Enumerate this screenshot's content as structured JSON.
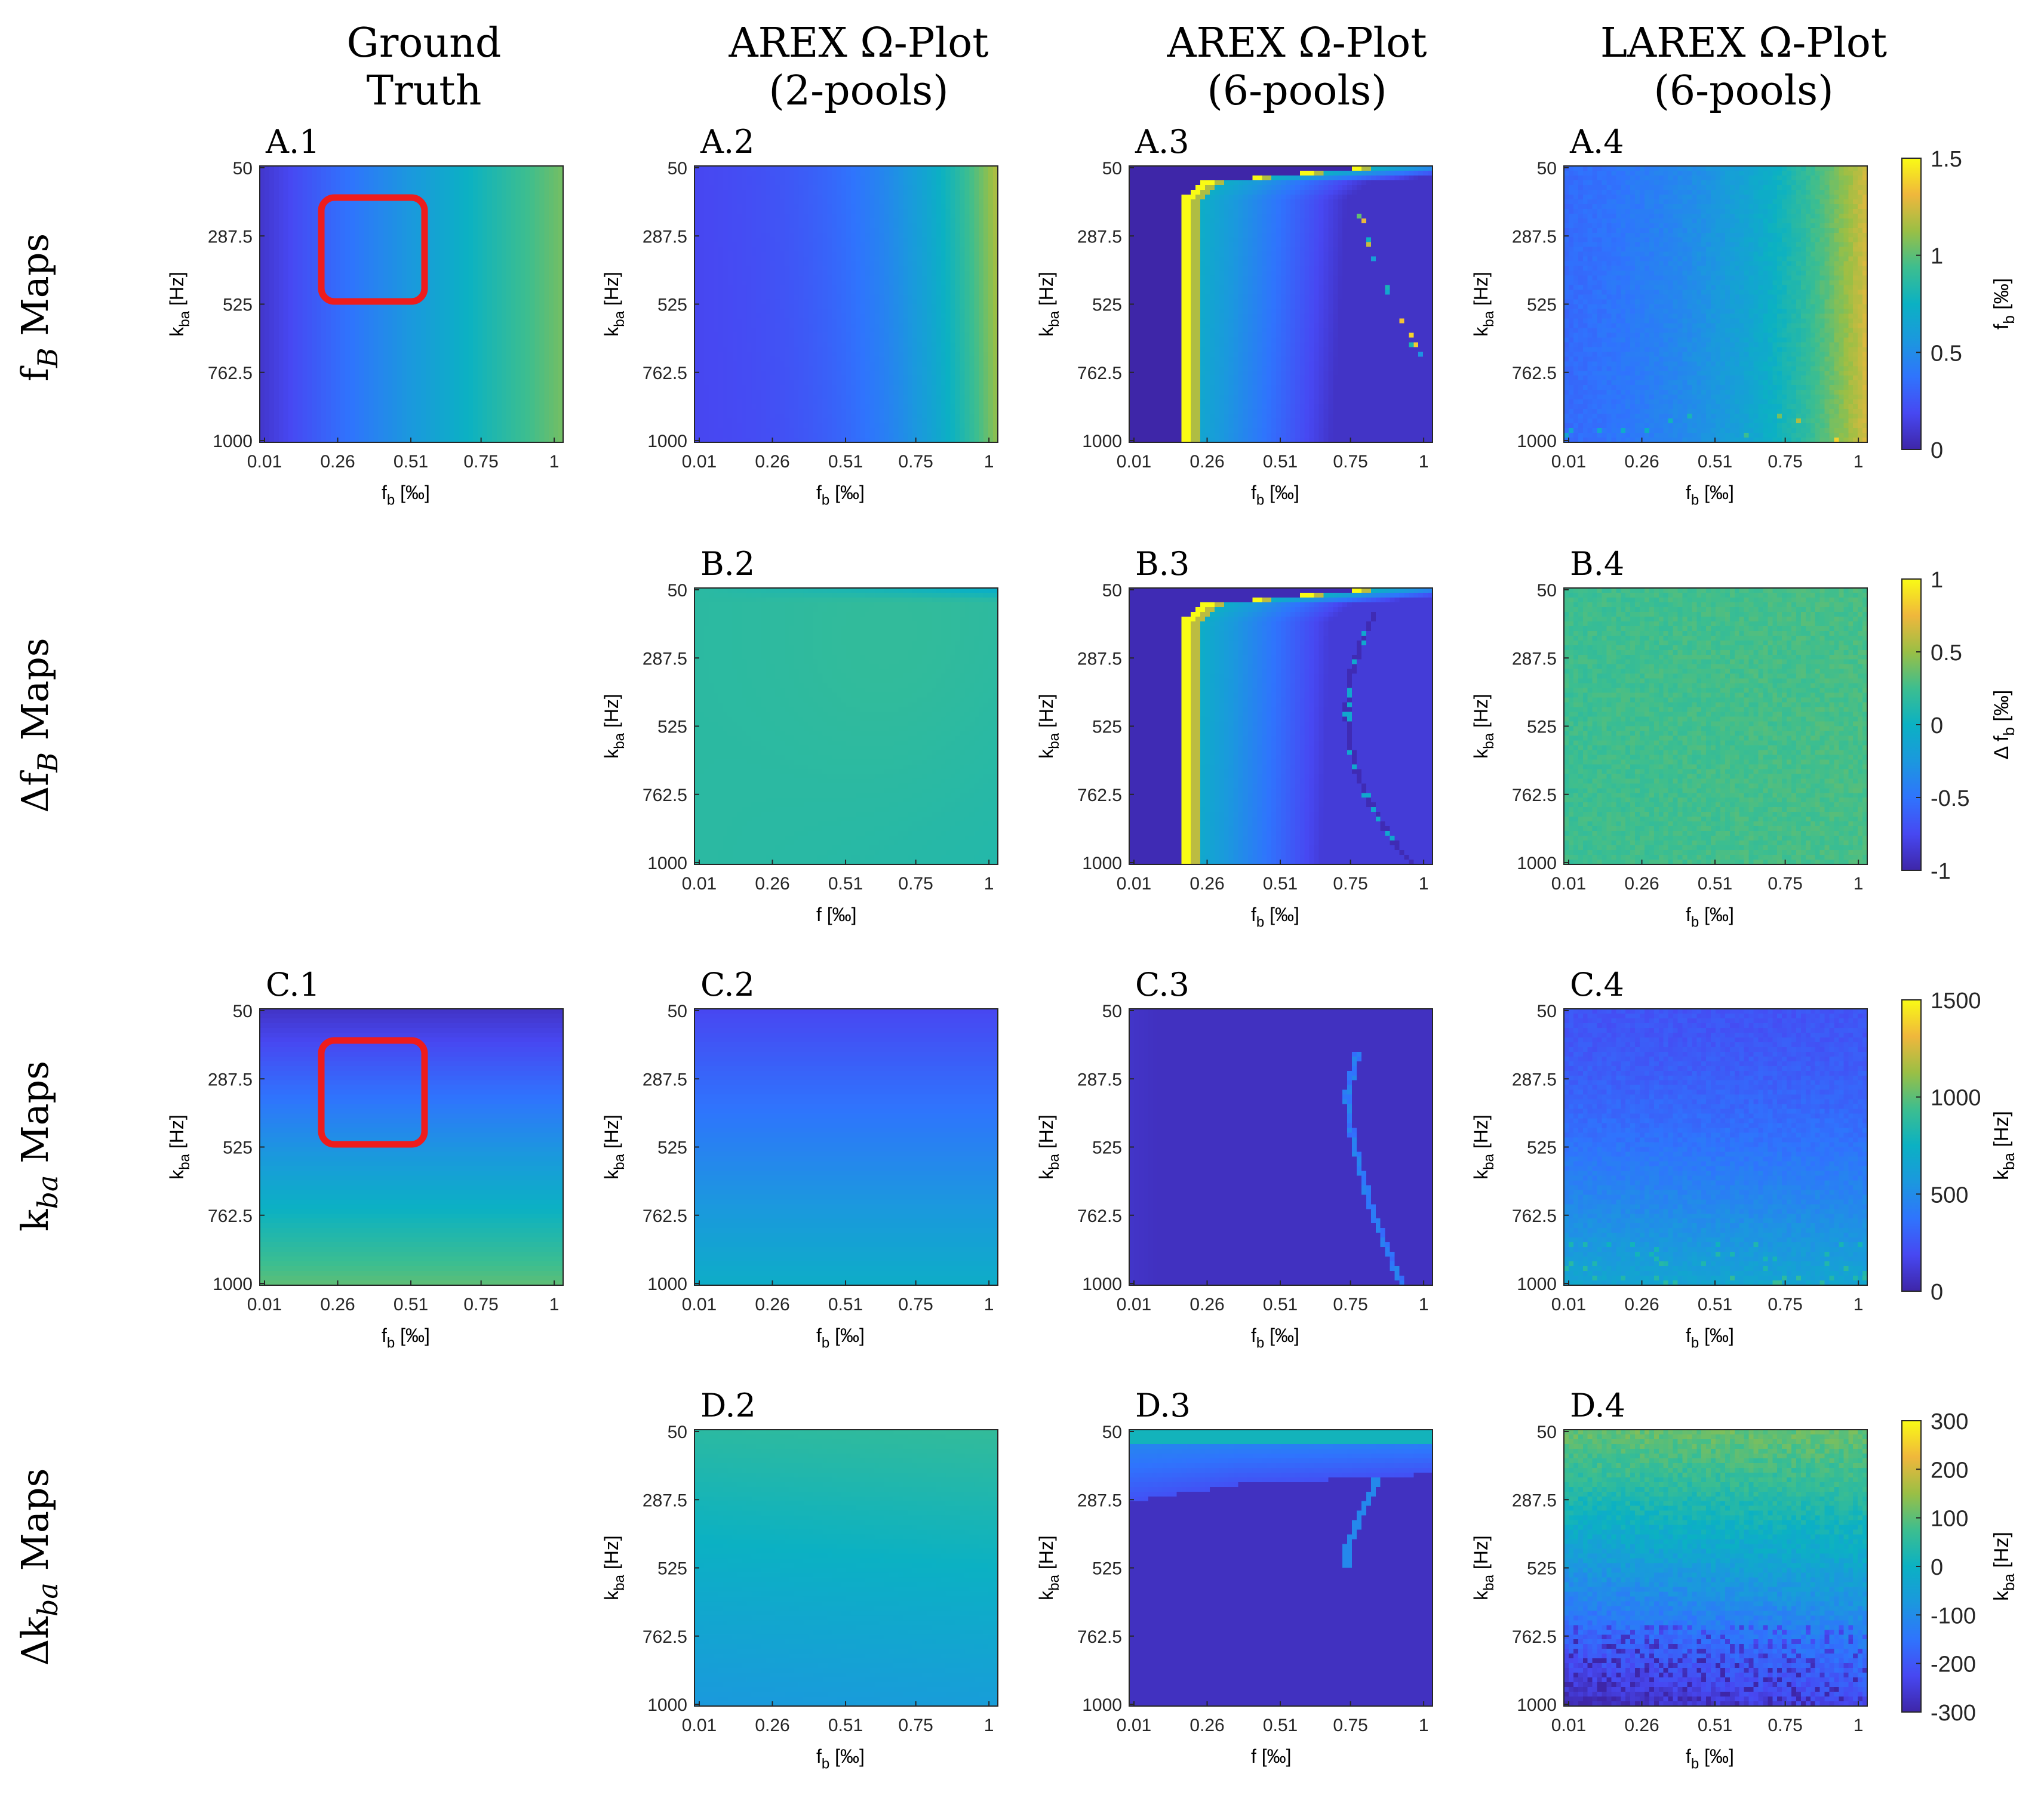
{
  "columns": [
    "Ground\nTruth",
    "AREX Ω-Plot\n(2-pools)",
    "AREX Ω-Plot\n(6-pools)",
    "LAREX Ω-Plot\n(6-pools)"
  ],
  "rows": [
    {
      "label": "f_B Maps",
      "main": "f",
      "sub": "B",
      "prefix": "",
      "suffix": "  Maps"
    },
    {
      "label": "Δf_B Maps",
      "main": "Δf",
      "sub": "B",
      "prefix": "",
      "suffix": "  Maps"
    },
    {
      "label": "k_ba Maps",
      "main": "k",
      "sub": "ba",
      "prefix": "",
      "suffix": "  Maps"
    },
    {
      "label": "Δk_ba Maps",
      "main": "Δk",
      "sub": "ba",
      "prefix": "",
      "suffix": "  Maps"
    }
  ],
  "colors": {
    "viridis_low": "#3e26a8",
    "viridis_mid": "#24b5ac",
    "viridis_high": "#f9fb15",
    "roi": "#ee1c1c"
  },
  "chart_data": {
    "type": "heatmap",
    "x_ticks": [
      "0.01",
      "0.26",
      "0.51",
      "0.75",
      "1"
    ],
    "y_ticks": [
      "50",
      "287.5",
      "525",
      "762.5",
      "1000"
    ],
    "xlim": [
      0.01,
      1
    ],
    "ylim": [
      50,
      1000
    ],
    "colormap": "parula",
    "panels": [
      {
        "id": "A.1",
        "row": 0,
        "col": 0,
        "xlabel_main": "f",
        "xlabel_sub": "b",
        "xlabel_unit": " [‰]",
        "ylabel_main": "k",
        "ylabel_sub": "ba",
        "ylabel_unit": " [Hz]",
        "pattern": "gt_fb",
        "roi": true
      },
      {
        "id": "A.2",
        "row": 0,
        "col": 1,
        "xlabel_main": "f",
        "xlabel_sub": "b",
        "xlabel_unit": " [‰]",
        "ylabel_main": "k",
        "ylabel_sub": "ba",
        "ylabel_unit": " [Hz]",
        "pattern": "arex2_fb",
        "roi": false
      },
      {
        "id": "A.3",
        "row": 0,
        "col": 2,
        "xlabel_main": "f",
        "xlabel_sub": "b",
        "xlabel_unit": " [‰]",
        "ylabel_main": "k",
        "ylabel_sub": "ba",
        "ylabel_unit": " [Hz]",
        "pattern": "arex6_fb",
        "roi": false
      },
      {
        "id": "A.4",
        "row": 0,
        "col": 3,
        "xlabel_main": "f",
        "xlabel_sub": "b",
        "xlabel_unit": " [‰]",
        "ylabel_main": "k",
        "ylabel_sub": "ba",
        "ylabel_unit": " [Hz]",
        "pattern": "larex_fb",
        "roi": false
      },
      {
        "id": "B.2",
        "row": 1,
        "col": 1,
        "xlabel_main": "f",
        "xlabel_sub": "",
        "xlabel_unit": " [‰]",
        "ylabel_main": "k",
        "ylabel_sub": "ba",
        "ylabel_unit": " [Hz]",
        "pattern": "arex2_dfb",
        "roi": false
      },
      {
        "id": "B.3",
        "row": 1,
        "col": 2,
        "xlabel_main": "f",
        "xlabel_sub": "b",
        "xlabel_unit": " [‰]",
        "ylabel_main": "k",
        "ylabel_sub": "ba",
        "ylabel_unit": " [Hz]",
        "pattern": "arex6_dfb",
        "roi": false
      },
      {
        "id": "B.4",
        "row": 1,
        "col": 3,
        "xlabel_main": "f",
        "xlabel_sub": "b",
        "xlabel_unit": " [‰]",
        "ylabel_main": "k",
        "ylabel_sub": "ba",
        "ylabel_unit": " [Hz]",
        "pattern": "larex_dfb",
        "roi": false
      },
      {
        "id": "C.1",
        "row": 2,
        "col": 0,
        "xlabel_main": "f",
        "xlabel_sub": "b",
        "xlabel_unit": " [‰]",
        "ylabel_main": "k",
        "ylabel_sub": "ba",
        "ylabel_unit": " [Hz]",
        "pattern": "gt_kba",
        "roi": true
      },
      {
        "id": "C.2",
        "row": 2,
        "col": 1,
        "xlabel_main": "f",
        "xlabel_sub": "b",
        "xlabel_unit": " [‰]",
        "ylabel_main": "k",
        "ylabel_sub": "ba",
        "ylabel_unit": " [Hz]",
        "pattern": "arex2_kba",
        "roi": false
      },
      {
        "id": "C.3",
        "row": 2,
        "col": 2,
        "xlabel_main": "f",
        "xlabel_sub": "b",
        "xlabel_unit": " [‰]",
        "ylabel_main": "k",
        "ylabel_sub": "ba",
        "ylabel_unit": " [Hz]",
        "pattern": "arex6_kba",
        "roi": false
      },
      {
        "id": "C.4",
        "row": 2,
        "col": 3,
        "xlabel_main": "f",
        "xlabel_sub": "b",
        "xlabel_unit": " [‰]",
        "ylabel_main": "k",
        "ylabel_sub": "ba",
        "ylabel_unit": " [Hz]",
        "pattern": "larex_kba",
        "roi": false
      },
      {
        "id": "D.2",
        "row": 3,
        "col": 1,
        "xlabel_main": "f",
        "xlabel_sub": "b",
        "xlabel_unit": " [‰]",
        "ylabel_main": "k",
        "ylabel_sub": "ba",
        "ylabel_unit": " [Hz]",
        "pattern": "arex2_dkba",
        "roi": false
      },
      {
        "id": "D.3",
        "row": 3,
        "col": 2,
        "xlabel_main": "f",
        "xlabel_sub": "",
        "xlabel_unit": " [‰]",
        "ylabel_main": "k",
        "ylabel_sub": "ba",
        "ylabel_unit": " [Hz]",
        "pattern": "arex6_dkba",
        "roi": false
      },
      {
        "id": "D.4",
        "row": 3,
        "col": 3,
        "xlabel_main": "f",
        "xlabel_sub": "b",
        "xlabel_unit": " [‰]",
        "ylabel_main": "k",
        "ylabel_sub": "ba",
        "ylabel_unit": " [Hz]",
        "pattern": "larex_dkba",
        "roi": false
      }
    ],
    "colorbars": [
      {
        "row": 0,
        "ticks": [
          "1.5",
          "1",
          "0.5",
          "0"
        ],
        "tick_values": [
          1.5,
          1,
          0.5,
          0
        ],
        "range": [
          0,
          1.5
        ],
        "label_main": "f",
        "label_sub": "b",
        "label_unit": " [‰]",
        "label_prefix": ""
      },
      {
        "row": 1,
        "ticks": [
          "1",
          "0.5",
          "0",
          "-0.5",
          "-1"
        ],
        "tick_values": [
          1,
          0.5,
          0,
          -0.5,
          -1
        ],
        "range": [
          -1,
          1
        ],
        "label_main": "f",
        "label_sub": "b",
        "label_unit": " [‰]",
        "label_prefix": "Δ "
      },
      {
        "row": 2,
        "ticks": [
          "1500",
          "1000",
          "500",
          "0"
        ],
        "tick_values": [
          1500,
          1000,
          500,
          0
        ],
        "range": [
          0,
          1500
        ],
        "label_main": "k",
        "label_sub": "ba",
        "label_unit": " [Hz]",
        "label_prefix": ""
      },
      {
        "row": 3,
        "ticks": [
          "300",
          "200",
          "100",
          "0",
          "-100",
          "-200",
          "-300"
        ],
        "tick_values": [
          300,
          200,
          100,
          0,
          -100,
          -200,
          -300
        ],
        "range": [
          -300,
          300
        ],
        "label_main": "k",
        "label_sub": "ba",
        "label_unit": " [Hz]",
        "label_prefix": ""
      }
    ]
  }
}
